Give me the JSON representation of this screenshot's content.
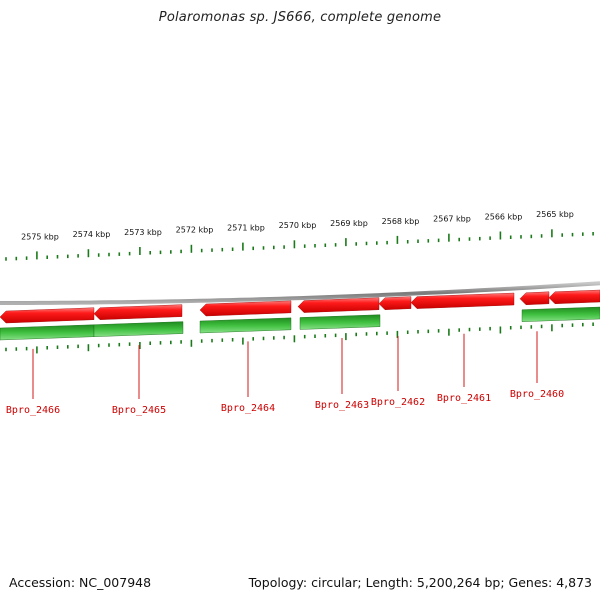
{
  "title": "Polaromonas sp. JS666, complete genome",
  "footer": {
    "accession": "Accession: NC_007948",
    "summary": "Topology: circular; Length: 5,200,264 bp; Genes: 4,873"
  },
  "colors": {
    "forward_gene": "#ee0000",
    "reverse_gene": "#22aa22",
    "tick": "#1a7a1a",
    "backbone": "#888888",
    "label": "#cc0000"
  },
  "scale_ticks_kbp": [
    {
      "label": "2575 kbp",
      "value": 2575
    },
    {
      "label": "2574 kbp",
      "value": 2574
    },
    {
      "label": "2573 kbp",
      "value": 2573
    },
    {
      "label": "2572 kbp",
      "value": 2572
    },
    {
      "label": "2571 kbp",
      "value": 2571
    },
    {
      "label": "2570 kbp",
      "value": 2570
    },
    {
      "label": "2569 kbp",
      "value": 2569
    },
    {
      "label": "2568 kbp",
      "value": 2568
    },
    {
      "label": "2567 kbp",
      "value": 2567
    },
    {
      "label": "2566 kbp",
      "value": 2566
    },
    {
      "label": "2565 kbp",
      "value": 2565
    }
  ],
  "gene_labels": [
    "Bpro_2466",
    "Bpro_2465",
    "Bpro_2464",
    "Bpro_2463",
    "Bpro_2462",
    "Bpro_2461",
    "Bpro_2460"
  ]
}
